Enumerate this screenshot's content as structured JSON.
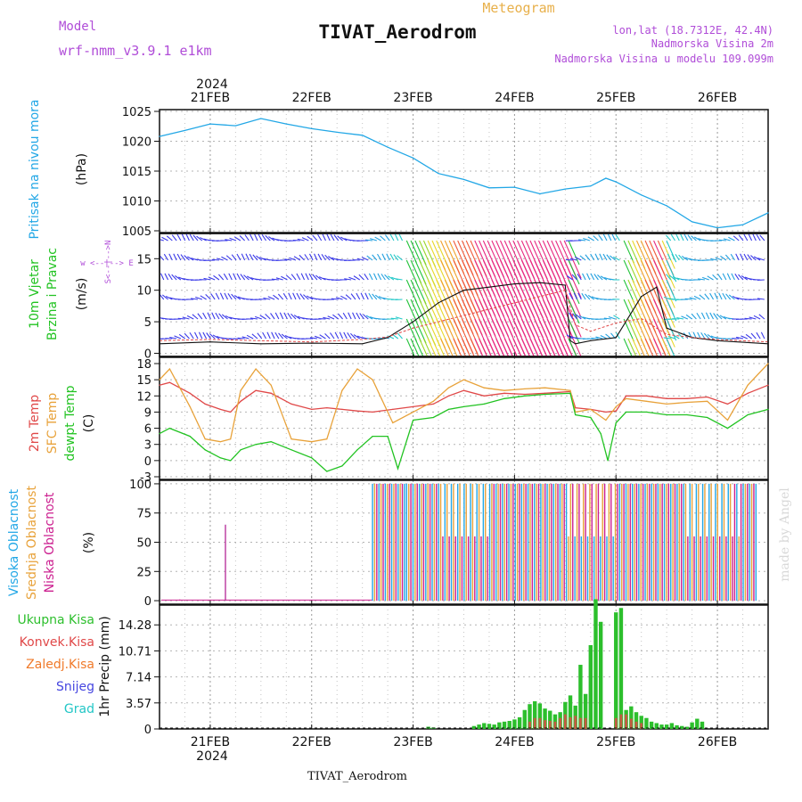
{
  "header": {
    "model_label": "Model",
    "model_name": "wrf-nmm_v3.9.1 e1km",
    "meteogram_label": "Meteogram",
    "station_title": "TIVAT_Aerodrom",
    "lonlat": "lon,lat (18.7312E, 42.4N)",
    "elevation": "Nadmorska Visina 2m",
    "model_elevation": "Nadmorska Visina u modelu 109.099m",
    "watermark": "made by Angel",
    "footer_station": "TIVAT_Aerodrom"
  },
  "colors": {
    "pressure": "#22a7e6",
    "wind_title": "#22c322",
    "wind_axis": "#b04dd8",
    "temp2m": "#e04848",
    "sfc": "#e8a23a",
    "dewpt": "#22c322",
    "high_cloud": "#22a7e6",
    "mid_cloud": "#e8a23a",
    "low_cloud": "#cc2090",
    "total_precip": "#2cbf2c",
    "conv_precip": "#e04848",
    "grid_precip": "#f07a2a",
    "snow": "#4646e0",
    "hail": "#22c6c6",
    "header_purple": "#b04dd8",
    "header_orange": "#e8b04a"
  },
  "time_axis": {
    "top_year": "2024",
    "bottom_year": "2024",
    "dates": [
      "21FEB",
      "22FEB",
      "23FEB",
      "24FEB",
      "25FEB",
      "26FEB"
    ],
    "start_day": 20.5,
    "end_day": 26.5
  },
  "chart_data": [
    {
      "type": "line",
      "name": "pressure",
      "ylabel": "Pritisak na nivou mora",
      "unit": "(hPa)",
      "ylim": [
        1005,
        1025
      ],
      "yticks": [
        "1005",
        "1010",
        "1015",
        "1020",
        "1025"
      ],
      "x": [
        20.5,
        20.75,
        21.0,
        21.25,
        21.5,
        21.75,
        22.0,
        22.25,
        22.5,
        22.75,
        23.0,
        23.25,
        23.5,
        23.75,
        24.0,
        24.25,
        24.5,
        24.75,
        24.9,
        25.0,
        25.25,
        25.5,
        25.75,
        26.0,
        26.25,
        26.5
      ],
      "values": [
        1020.8,
        1021.8,
        1022.9,
        1022.6,
        1023.8,
        1022.9,
        1022.1,
        1021.5,
        1021.0,
        1019.0,
        1017.2,
        1014.6,
        1013.6,
        1012.2,
        1012.3,
        1011.2,
        1012.0,
        1012.5,
        1013.8,
        1013.2,
        1011.0,
        1009.2,
        1006.5,
        1005.5,
        1006.0,
        1008.0
      ]
    },
    {
      "type": "line",
      "name": "wind",
      "title_lines": [
        "10m Vjetar",
        "Brzina i Pravac"
      ],
      "unit": "(m/s)",
      "compass": "w <--|--> E",
      "compass_ns": "S<--|-->N",
      "ylim": [
        -0.5,
        19
      ],
      "yticks": [
        "0",
        "5",
        "10",
        "15"
      ],
      "series": [
        {
          "name": "speed",
          "x": [
            20.5,
            21.0,
            21.5,
            22.0,
            22.5,
            22.75,
            23.0,
            23.25,
            23.5,
            23.75,
            24.0,
            24.25,
            24.5,
            24.55,
            24.6,
            24.75,
            25.0,
            25.25,
            25.4,
            25.5,
            25.75,
            26.0,
            26.5
          ],
          "values": [
            1.5,
            1.8,
            1.5,
            1.6,
            1.5,
            2.5,
            5.0,
            8.0,
            10.0,
            10.5,
            11.0,
            11.2,
            10.8,
            2.0,
            1.5,
            2.0,
            2.5,
            9.0,
            10.5,
            4.0,
            2.5,
            2.0,
            1.5
          ]
        },
        {
          "name": "gust",
          "x": [
            20.5,
            21.0,
            21.5,
            22.0,
            22.5,
            22.75,
            23.0,
            24.5,
            24.6,
            24.75,
            25.0,
            25.25,
            25.5,
            25.75,
            26.0,
            26.5
          ],
          "values": [
            2.0,
            2.2,
            2.0,
            1.8,
            2.2,
            2.6,
            4.0,
            10.0,
            4.5,
            3.5,
            4.8,
            5.5,
            3.0,
            2.5,
            2.2,
            1.8
          ]
        }
      ]
    },
    {
      "type": "line",
      "name": "temperature",
      "title_lines": [
        "2m Temp",
        "SFC Temp",
        "dewpt Temp"
      ],
      "unit": "(C)",
      "ylim": [
        -3,
        18
      ],
      "yticks": [
        "-3",
        "0",
        "3",
        "6",
        "9",
        "12",
        "15",
        "18"
      ],
      "series": [
        {
          "name": "2m Temp",
          "x": [
            20.5,
            20.6,
            20.8,
            20.95,
            21.1,
            21.2,
            21.3,
            21.45,
            21.6,
            21.8,
            22.0,
            22.15,
            22.3,
            22.45,
            22.6,
            22.8,
            23.0,
            23.2,
            23.35,
            23.5,
            23.7,
            23.9,
            24.1,
            24.3,
            24.55,
            24.6,
            24.75,
            24.9,
            25.0,
            25.1,
            25.3,
            25.5,
            25.7,
            25.9,
            26.1,
            26.3,
            26.5
          ],
          "values": [
            14.0,
            14.5,
            12.5,
            10.5,
            9.5,
            9.0,
            11.0,
            13.0,
            12.5,
            10.5,
            9.5,
            9.8,
            9.5,
            9.2,
            9.0,
            9.5,
            10.0,
            10.5,
            12.0,
            13.0,
            12.0,
            12.5,
            12.3,
            12.5,
            12.8,
            9.8,
            9.5,
            9.0,
            9.2,
            12.0,
            12.0,
            11.5,
            11.5,
            11.8,
            10.5,
            12.5,
            14.0
          ]
        },
        {
          "name": "SFC Temp",
          "x": [
            20.5,
            20.6,
            20.8,
            20.95,
            21.1,
            21.2,
            21.3,
            21.45,
            21.6,
            21.8,
            22.0,
            22.15,
            22.3,
            22.45,
            22.6,
            22.8,
            23.0,
            23.2,
            23.35,
            23.5,
            23.7,
            23.9,
            24.1,
            24.3,
            24.55,
            24.6,
            24.75,
            24.9,
            25.0,
            25.1,
            25.3,
            25.5,
            25.7,
            25.9,
            26.1,
            26.3,
            26.5
          ],
          "values": [
            15.0,
            17.0,
            10.0,
            4.0,
            3.5,
            4.0,
            13.0,
            17.0,
            14.0,
            4.0,
            3.5,
            4.0,
            13.0,
            17.0,
            15.0,
            7.0,
            9.0,
            11.0,
            13.5,
            15.0,
            13.5,
            13.0,
            13.3,
            13.5,
            13.0,
            9.0,
            9.5,
            7.5,
            10.0,
            11.5,
            11.0,
            10.5,
            10.8,
            11.0,
            7.5,
            14.0,
            18.0
          ]
        },
        {
          "name": "dewpt Temp",
          "x": [
            20.5,
            20.6,
            20.8,
            20.95,
            21.1,
            21.2,
            21.3,
            21.45,
            21.6,
            21.8,
            22.0,
            22.15,
            22.3,
            22.45,
            22.6,
            22.75,
            22.85,
            23.0,
            23.2,
            23.35,
            23.5,
            23.7,
            23.9,
            24.1,
            24.3,
            24.55,
            24.6,
            24.75,
            24.85,
            24.92,
            25.0,
            25.1,
            25.3,
            25.5,
            25.7,
            25.9,
            26.1,
            26.3,
            26.5
          ],
          "values": [
            5.0,
            6.0,
            4.5,
            2.0,
            0.5,
            0.0,
            2.0,
            3.0,
            3.5,
            2.0,
            0.5,
            -2.0,
            -1.0,
            2.0,
            4.5,
            4.5,
            -1.5,
            7.5,
            8.0,
            9.5,
            10.0,
            10.5,
            11.5,
            12.0,
            12.3,
            12.5,
            8.5,
            8.0,
            5.0,
            0.0,
            7.0,
            9.0,
            9.0,
            8.5,
            8.5,
            8.0,
            6.0,
            8.5,
            9.5
          ]
        }
      ]
    },
    {
      "type": "bar",
      "name": "cloud",
      "title_lines": [
        "Visoka Oblacnost",
        "Srednja Oblacnost",
        "Niska Oblacnost"
      ],
      "unit": "(%)",
      "ylim": [
        -3,
        103
      ],
      "yticks": [
        "0",
        "25",
        "50",
        "75",
        "100"
      ],
      "series": [
        {
          "name": "Visoka Oblacnost",
          "x": [
            21.15
          ],
          "values": [
            65
          ]
        },
        {
          "name": "Srednja Oblacnost",
          "x": [],
          "values": []
        },
        {
          "name": "Niska Oblacnost",
          "x": [
            20.7,
            21.15
          ],
          "values": [
            1,
            65
          ]
        }
      ]
    },
    {
      "type": "bar",
      "name": "precip",
      "title_lines": [
        "Ukupna Kisa",
        "Konvek.Kisa",
        "Zaledj.Kisa",
        "Snijeg",
        "Grad"
      ],
      "ylabel": "1hr Precip (mm)",
      "ylim": [
        0,
        17
      ],
      "yticks": [
        "0",
        "3.57",
        "7.14",
        "10.71",
        "14.28"
      ],
      "series": [
        {
          "name": "Ukupna Kisa",
          "x": [
            23.15,
            23.2,
            23.6,
            23.65,
            23.7,
            23.75,
            23.8,
            23.85,
            23.9,
            23.95,
            24.0,
            24.05,
            24.1,
            24.15,
            24.2,
            24.25,
            24.3,
            24.35,
            24.4,
            24.45,
            24.5,
            24.55,
            24.6,
            24.65,
            24.7,
            24.75,
            24.8,
            24.85,
            25.0,
            25.05,
            25.1,
            25.15,
            25.2,
            25.25,
            25.3,
            25.35,
            25.4,
            25.45,
            25.5,
            25.55,
            25.6,
            25.65,
            25.7,
            25.75,
            25.8,
            25.85
          ],
          "values": [
            0.3,
            0.2,
            0.4,
            0.6,
            0.8,
            0.7,
            0.6,
            0.9,
            1.0,
            1.1,
            1.3,
            1.6,
            2.6,
            3.4,
            3.8,
            3.5,
            2.8,
            2.5,
            2.0,
            2.3,
            3.7,
            4.6,
            3.2,
            8.8,
            4.8,
            11.5,
            17.8,
            14.7,
            16.0,
            16.6,
            2.6,
            3.1,
            2.3,
            1.8,
            1.5,
            1.0,
            0.8,
            0.6,
            0.6,
            0.8,
            0.5,
            0.4,
            0.3,
            0.9,
            1.4,
            1.0
          ]
        },
        {
          "name": "Konvek.Kisa",
          "x": [
            24.15,
            24.2,
            24.25,
            24.3,
            24.35,
            24.4,
            24.45,
            24.5,
            24.55,
            24.6,
            24.65,
            24.7,
            25.0,
            25.05,
            25.1,
            25.15,
            25.2,
            25.25
          ],
          "values": [
            1.0,
            1.5,
            1.5,
            1.2,
            1.1,
            1.0,
            1.5,
            2.0,
            1.6,
            1.8,
            1.5,
            1.5,
            1.5,
            2.0,
            2.0,
            1.4,
            1.0,
            0.8
          ]
        }
      ]
    }
  ]
}
